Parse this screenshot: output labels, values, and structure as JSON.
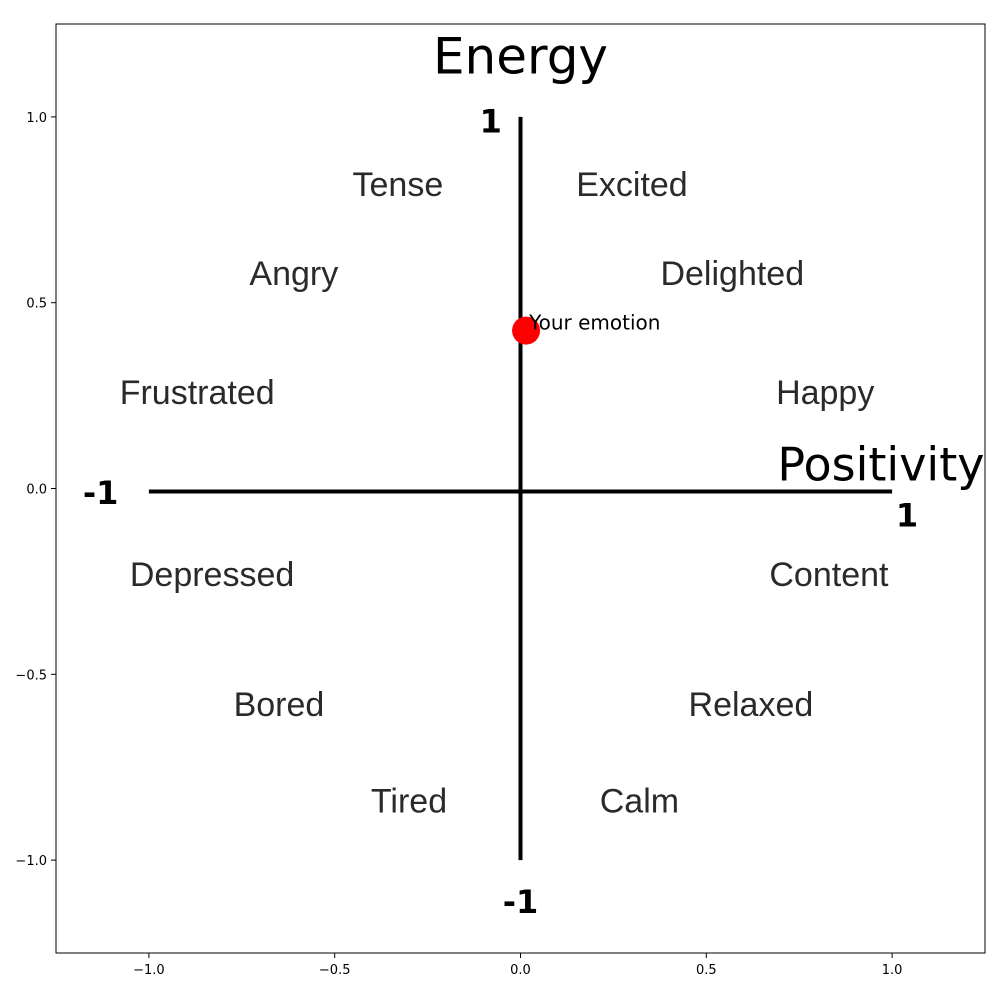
{
  "chart_data": {
    "type": "scatter",
    "xlim": [
      -1.25,
      1.25
    ],
    "ylim": [
      -1.25,
      1.25
    ],
    "x_ticks": [
      -1.0,
      -0.5,
      0.0,
      0.5,
      1.0
    ],
    "y_ticks": [
      1.0,
      0.5,
      0.0,
      -0.5,
      -1.0
    ],
    "x_tick_labels": [
      "−1.0",
      "−0.5",
      "0.0",
      "0.5",
      "1.0"
    ],
    "y_tick_labels": [
      "1.0",
      "0.5",
      "0.0",
      "−0.5",
      "−1.0"
    ],
    "grid": false,
    "axes_lines": {
      "horizontal": {
        "from": [
          -1.0,
          0.0
        ],
        "to": [
          1.0,
          0.0
        ]
      },
      "vertical": {
        "from": [
          0.0,
          -1.0
        ],
        "to": [
          0.0,
          1.0
        ]
      }
    },
    "axis_titles": {
      "vertical": {
        "text": "Energy",
        "x": 0.0,
        "y": 1.17
      },
      "horizontal": {
        "text": "Positivity",
        "x": 0.97,
        "y": 0.07
      }
    },
    "end_labels": [
      {
        "text": "1",
        "x": -0.08,
        "y": 0.99
      },
      {
        "text": "-1",
        "x": -1.13,
        "y": -0.01
      },
      {
        "text": "1",
        "x": 1.04,
        "y": -0.07
      },
      {
        "text": "-1",
        "x": 0.0,
        "y": -1.11
      }
    ],
    "emotion_labels": [
      {
        "text": "Tense",
        "x": -0.33,
        "y": 0.82
      },
      {
        "text": "Excited",
        "x": 0.3,
        "y": 0.82
      },
      {
        "text": "Angry",
        "x": -0.61,
        "y": 0.58
      },
      {
        "text": "Delighted",
        "x": 0.57,
        "y": 0.58
      },
      {
        "text": "Frustrated",
        "x": -0.87,
        "y": 0.26
      },
      {
        "text": "Happy",
        "x": 0.82,
        "y": 0.26
      },
      {
        "text": "Depressed",
        "x": -0.83,
        "y": -0.23
      },
      {
        "text": "Content",
        "x": 0.83,
        "y": -0.23
      },
      {
        "text": "Bored",
        "x": -0.65,
        "y": -0.58
      },
      {
        "text": "Relaxed",
        "x": 0.62,
        "y": -0.58
      },
      {
        "text": "Tired",
        "x": -0.3,
        "y": -0.84
      },
      {
        "text": "Calm",
        "x": 0.32,
        "y": -0.84
      }
    ],
    "point": {
      "label": "Your emotion",
      "x": 0.015,
      "y": 0.425,
      "color": "#ff0000"
    }
  }
}
